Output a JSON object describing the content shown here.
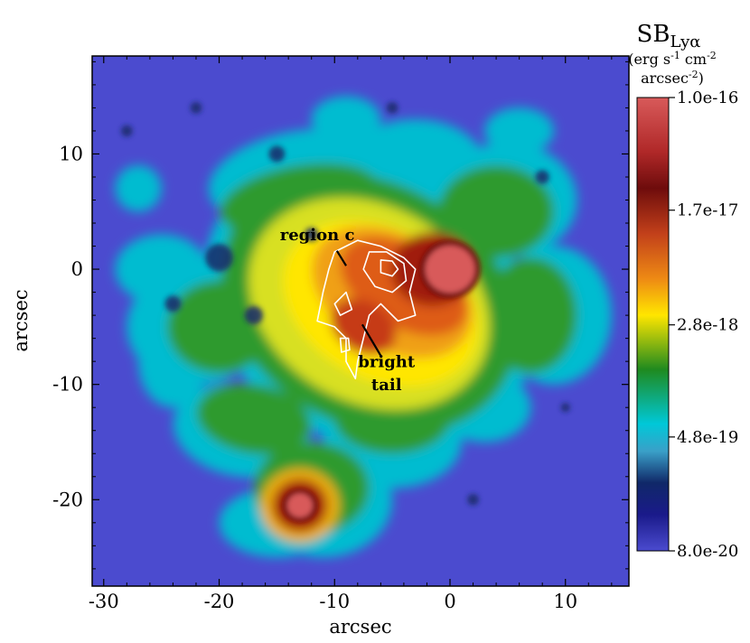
{
  "chart_data": {
    "type": "heatmap",
    "title": "",
    "xlabel": "arcsec",
    "ylabel": "arcsec",
    "xlim": [
      -31,
      15.5
    ],
    "ylim": [
      -27.5,
      18.5
    ],
    "x_ticks": [
      "-30",
      "-20",
      "-10",
      "0",
      "10"
    ],
    "x_tick_values": [
      -30,
      -20,
      -10,
      0,
      10
    ],
    "y_ticks": [
      "10",
      "0",
      "-10",
      "-20"
    ],
    "y_tick_values": [
      10,
      0,
      -10,
      -20
    ],
    "background_color": "#4b4bcf",
    "colorbar": {
      "title_main": "SB",
      "title_sub": "Lyα",
      "units_line1_a": "(erg s",
      "units_line1_b": "-1",
      "units_line1_c": " cm",
      "units_line1_d": "-2",
      "units_line2_a": "arcsec",
      "units_line2_b": "-2",
      "units_line2_c": ")",
      "ticks": [
        "1.0e-16",
        "1.7e-17",
        "2.8e-18",
        "4.8e-19",
        "8.0e-20"
      ],
      "tick_values": [
        1e-16,
        1.7e-17,
        2.8e-18,
        4.8e-19,
        8e-20
      ],
      "scale": "log",
      "colors_top_to_bottom": [
        "#d85a5a",
        "#6e0c0c",
        "#c2401a",
        "#ffe600",
        "#1f8a1f",
        "#00c8d8",
        "#102868",
        "#4b4bcf"
      ]
    },
    "sources": [
      {
        "x": 0.0,
        "y": 0.0,
        "peak": "1.0e-16"
      },
      {
        "x": -13.0,
        "y": -20.5,
        "peak": "1.0e-16"
      }
    ],
    "annotations": [
      {
        "text": "region c",
        "x": -11.5,
        "y": 2.5
      },
      {
        "text": "bright",
        "x": -5.5,
        "y": -8.5
      },
      {
        "text": "tail",
        "x": -5.5,
        "y": -10.5
      }
    ]
  }
}
